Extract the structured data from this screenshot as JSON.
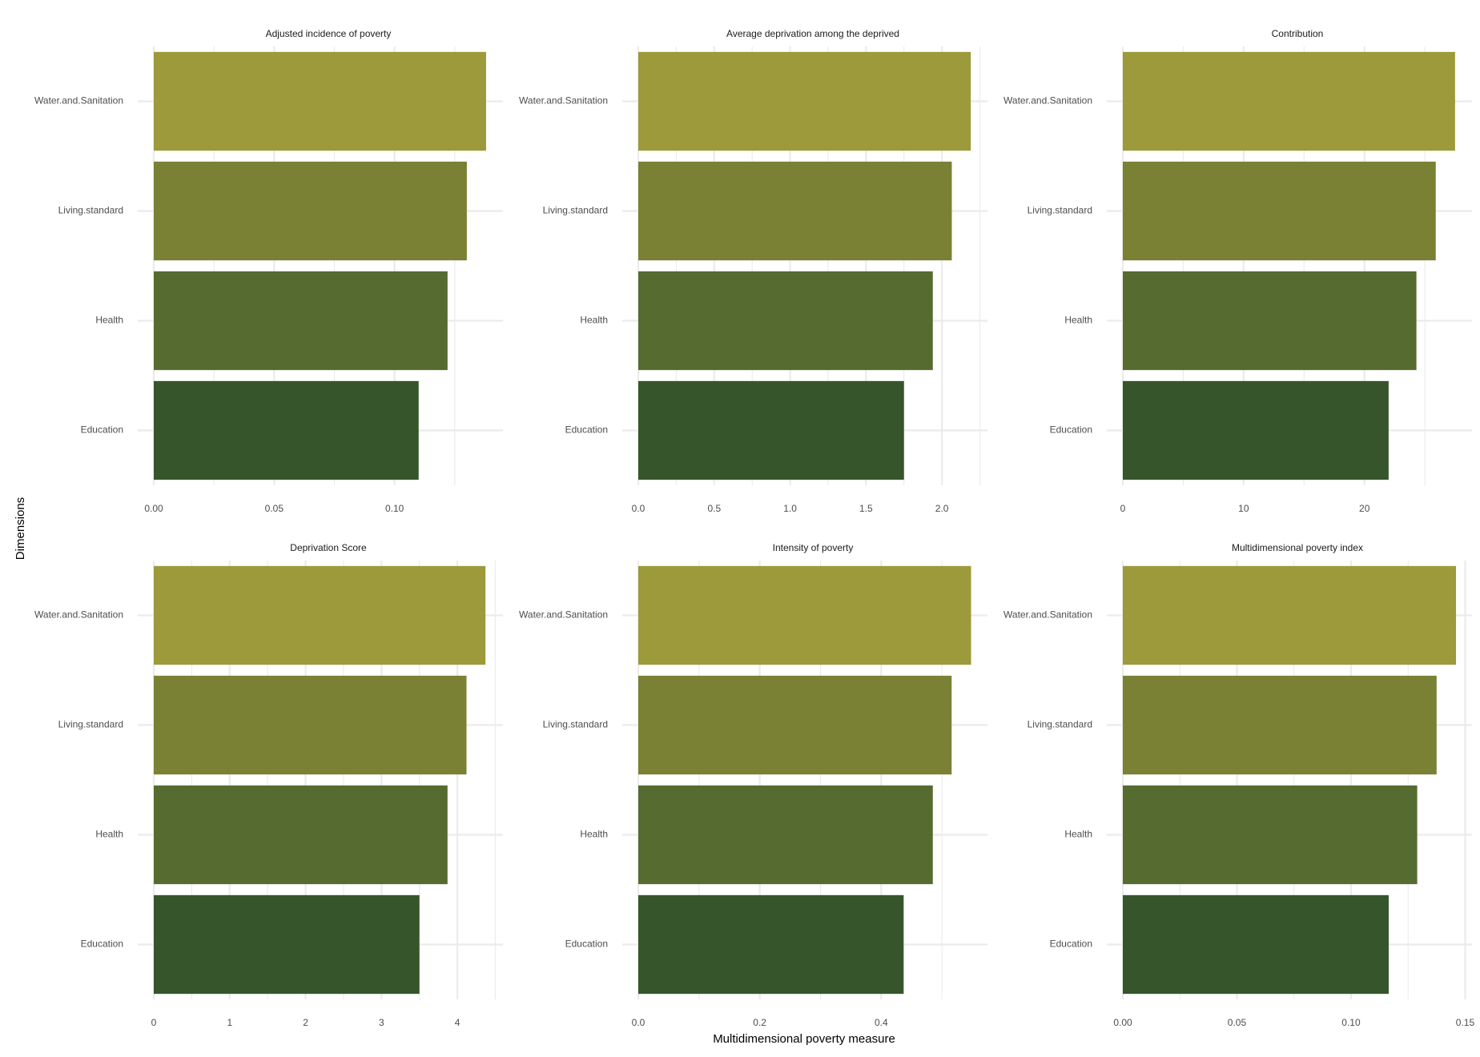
{
  "chart_data": {
    "type": "bar",
    "orientation": "horizontal",
    "layout": "facet grid, 2 rows x 3 columns, independent x scales",
    "xlabel": "Multidimensional poverty measure",
    "ylabel": "Dimensions",
    "categories": [
      "Education",
      "Health",
      "Living.standard",
      "Water.and.Sanitation"
    ],
    "colors": {
      "Education": "#36552b",
      "Health": "#566b2f",
      "Living.standard": "#7a8034",
      "Water.and.Sanitation": "#9c9a3b",
      "grid": "#ebebeb",
      "background": "#ffffff"
    },
    "grid": true,
    "legend": "none",
    "panels": [
      {
        "title": "Adjusted incidence of poverty",
        "values": [
          0.11,
          0.122,
          0.13,
          0.138
        ],
        "xlim": [
          0,
          0.145
        ],
        "ticks": [
          0,
          0.05,
          0.1
        ],
        "tick_labels": [
          "0.00",
          "0.05",
          "0.10"
        ]
      },
      {
        "title": "Average deprivation among the deprived",
        "values": [
          1.75,
          1.94,
          2.065,
          2.19
        ],
        "xlim": [
          0,
          2.3
        ],
        "ticks": [
          0,
          0.5,
          1,
          1.5,
          2
        ],
        "tick_labels": [
          "0.0",
          "0.5",
          "1.0",
          "1.5",
          "2.0"
        ]
      },
      {
        "title": "Contribution",
        "values": [
          22,
          24.3,
          25.9,
          27.5
        ],
        "xlim": [
          0,
          28.9
        ],
        "ticks": [
          0,
          10,
          20
        ],
        "tick_labels": [
          "0",
          "10",
          "20"
        ]
      },
      {
        "title": "Deprivation Score",
        "values": [
          3.5,
          3.87,
          4.12,
          4.37
        ],
        "xlim": [
          0,
          4.6
        ],
        "ticks": [
          0,
          1,
          2,
          3,
          4
        ],
        "tick_labels": [
          "0",
          "1",
          "2",
          "3",
          "4"
        ]
      },
      {
        "title": "Intensity of poverty",
        "values": [
          0.437,
          0.485,
          0.516,
          0.548
        ],
        "xlim": [
          0,
          0.575
        ],
        "ticks": [
          0,
          0.2,
          0.4
        ],
        "tick_labels": [
          "0.0",
          "0.2",
          "0.4"
        ]
      },
      {
        "title": "Multidimensional poverty index",
        "values": [
          0.1165,
          0.129,
          0.1375,
          0.146
        ],
        "xlim": [
          0,
          0.153
        ],
        "ticks": [
          0,
          0.05,
          0.1,
          0.15
        ],
        "tick_labels": [
          "0.00",
          "0.05",
          "0.10",
          "0.15"
        ]
      }
    ]
  }
}
